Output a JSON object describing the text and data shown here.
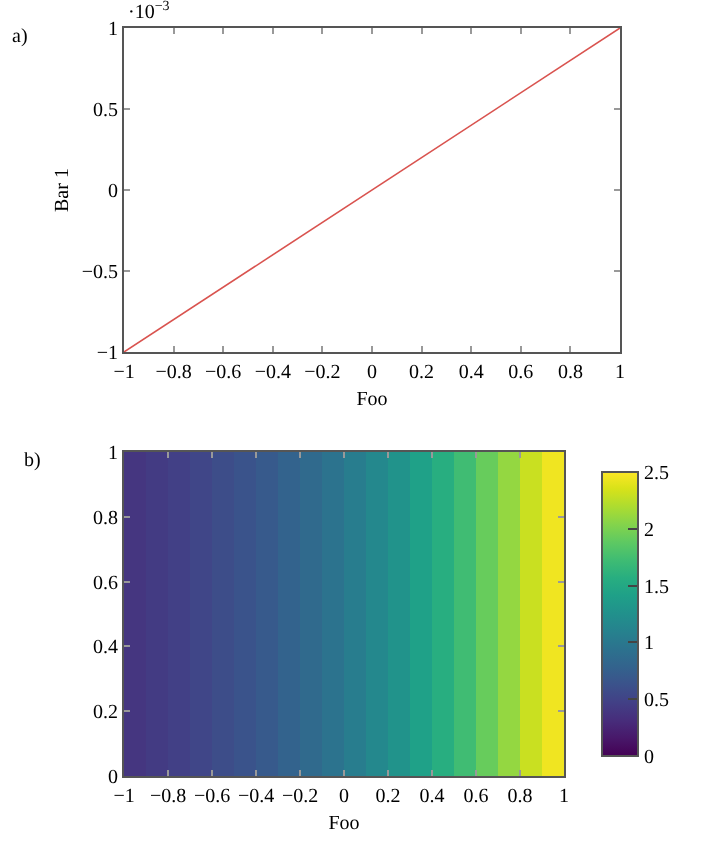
{
  "chart_data": [
    {
      "type": "line",
      "xlabel": "Foo",
      "ylabel": "Bar 1",
      "annotations": [
        "a)",
        "·10$^{−3}$"
      ],
      "x": [
        -1,
        1
      ],
      "series": [
        {
          "color": "#d9534f",
          "values": [
            -1,
            1
          ]
        }
      ],
      "xlim": [
        -1,
        1
      ],
      "xticks": [
        {
          "value": -1,
          "label": "−1"
        },
        {
          "value": -0.8,
          "label": "−0.8"
        },
        {
          "value": -0.6,
          "label": "−0.6"
        },
        {
          "value": -0.4,
          "label": "−0.4"
        },
        {
          "value": -0.2,
          "label": "−0.2"
        },
        0,
        0.2,
        0.4,
        0.6,
        0.8,
        1
      ],
      "ylim": [
        -1,
        1
      ],
      "yticks": [
        {
          "value": -1,
          "label": "−1"
        },
        {
          "value": -0.5,
          "label": "−0.5"
        },
        0,
        0.5,
        1
      ],
      "grid": false,
      "marker": "none",
      "line_style": "solid"
    },
    {
      "type": "heatmap",
      "xlabel": "Foo",
      "annotations": [
        "b)"
      ],
      "x": [
        -0.95,
        -0.85,
        -0.75,
        -0.65,
        -0.55,
        -0.45,
        -0.35,
        -0.25,
        -0.15,
        -0.05,
        0.05,
        0.15,
        0.25,
        0.35,
        0.45,
        0.55,
        0.65,
        0.75,
        0.85,
        0.95
      ],
      "cells": [
        [
          0.39,
          0.43,
          0.47,
          0.52,
          0.58,
          0.64,
          0.7,
          0.78,
          0.86,
          0.95,
          1.05,
          1.16,
          1.28,
          1.42,
          1.57,
          1.73,
          1.92,
          2.1,
          2.3,
          2.45
        ]
      ],
      "xlim": [
        -1,
        1
      ],
      "xticks": [
        {
          "value": -1,
          "label": "−1"
        },
        {
          "value": -0.8,
          "label": "−0.8"
        },
        {
          "value": -0.6,
          "label": "−0.6"
        },
        {
          "value": -0.4,
          "label": "−0.4"
        },
        {
          "value": -0.2,
          "label": "−0.2"
        },
        0,
        0.2,
        0.4,
        0.6,
        0.8,
        1
      ],
      "ylim": [
        0,
        1
      ],
      "yticks": [
        0,
        0.2,
        0.4,
        0.6,
        0.8,
        1
      ],
      "clim": [
        0,
        2.5
      ],
      "cticks": [
        0,
        0.5,
        1,
        1.5,
        2,
        2.5
      ]
    }
  ]
}
